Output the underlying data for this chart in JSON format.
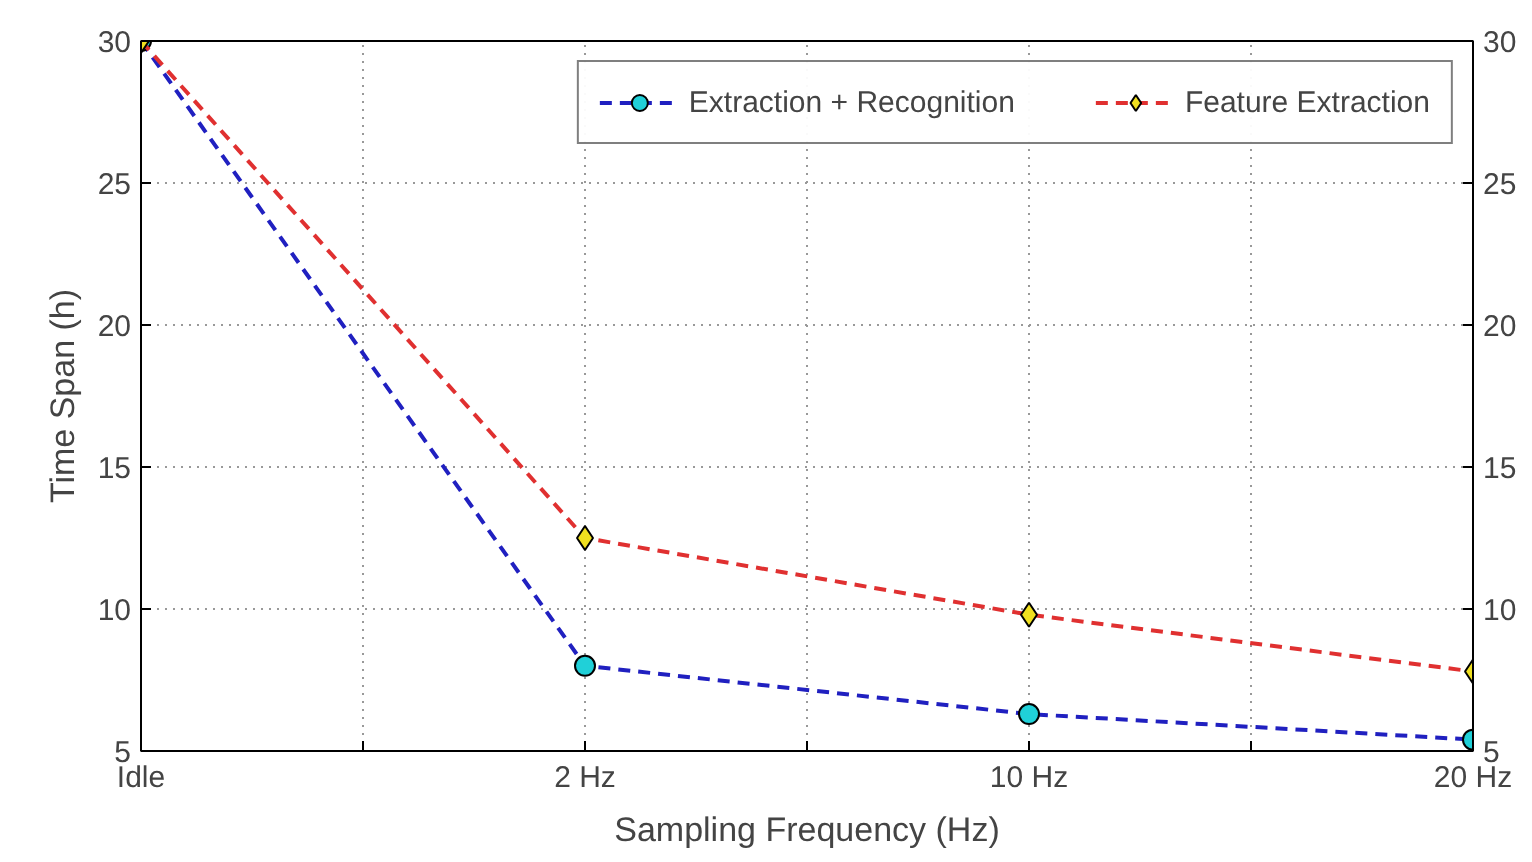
{
  "chart_data": {
    "type": "line",
    "xlabel": "Sampling Frequency (Hz)",
    "ylabel": "Time Span (h)",
    "categories": [
      "Idle",
      null,
      "2 Hz",
      null,
      "10 Hz",
      null,
      "20 Hz"
    ],
    "ylim": [
      5,
      30
    ],
    "yticks": [
      5,
      10,
      15,
      20,
      25,
      30
    ],
    "y2lim": [
      5,
      30
    ],
    "y2ticks": [
      5,
      10,
      15,
      20,
      25,
      30
    ],
    "grid": true,
    "legend": "top right",
    "line_style": "dashed",
    "series": [
      {
        "name": "Extraction + Recognition",
        "color": "#2020c0",
        "marker": "circle",
        "values": [
          30,
          null,
          8.0,
          null,
          6.3,
          null,
          5.4
        ]
      },
      {
        "name": "Feature Extraction",
        "color": "#e03030",
        "marker": "diamond",
        "values": [
          30,
          null,
          12.5,
          null,
          9.8,
          null,
          7.8
        ]
      }
    ]
  }
}
